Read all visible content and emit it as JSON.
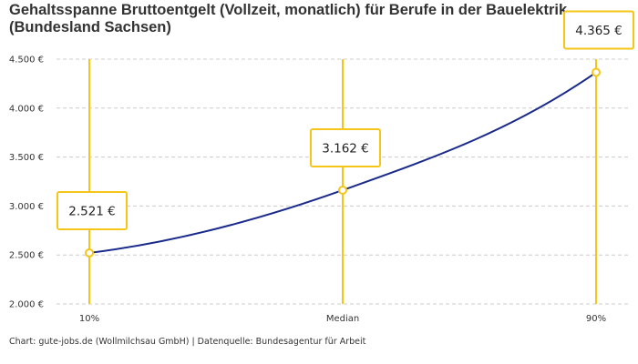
{
  "chart_data": {
    "type": "line",
    "title": "Gehaltsspanne Bruttoentgelt (Vollzeit, monatlich) für Berufe in der Bauelektrik (Bundesland Sachsen)",
    "categories": [
      "10%",
      "Median",
      "90%"
    ],
    "values": [
      2521,
      3162,
      4365
    ],
    "data_labels": [
      "2.521 €",
      "3.162 €",
      "4.365 €"
    ],
    "ylim": [
      2000,
      4500
    ],
    "yticks": [
      2000,
      2500,
      3000,
      3500,
      4000,
      4500
    ],
    "ytick_labels": [
      "2.000 €",
      "2.500 €",
      "3.000 €",
      "3.500 €",
      "4.000 €",
      "4.500 €"
    ],
    "grid": true,
    "xlabel": "",
    "ylabel": "",
    "colors": {
      "line": "#1a2a8c",
      "accent": "#f5c518",
      "grid": "#cccccc"
    }
  },
  "footer": {
    "credit": "Chart: gute-jobs.de (Wollmilchsau GmbH) | Datenquelle: Bundesagentur für Arbeit"
  }
}
